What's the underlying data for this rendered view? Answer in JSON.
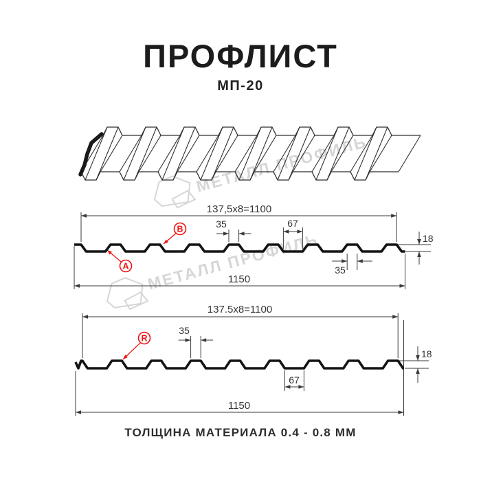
{
  "title": "ПРОФЛИСТ",
  "subtitle": "МП-20",
  "footer_note": "ТОЛЩИНА МАТЕРИАЛА 0.4 - 0.8 ММ",
  "watermark_text": "МЕТАЛЛ ПРОФИЛЬ",
  "colors": {
    "accent_red": "#ee1313",
    "drawing_line": "#3a3a3a",
    "profile_line": "#141414",
    "watermark_gray": "#d6d6d6",
    "text_dark": "#1c1c1c"
  },
  "top_view": {
    "total_width_label": "137,5x8=1100",
    "rib_top_width_label": "35",
    "valley_width_label": "67",
    "height_label": "18",
    "rib_base_width_label": "35",
    "sheet_width_label": "1150",
    "marker_a": "A",
    "marker_b": "B"
  },
  "bottom_view": {
    "total_width_label": "137.5x8=1100",
    "rib_top_width_label": "35",
    "valley_width_label": "67",
    "height_label": "18",
    "sheet_width_label": "1150",
    "marker_r": "R"
  }
}
